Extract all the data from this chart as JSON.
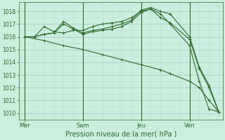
{
  "background_color": "#cceedd",
  "grid_color_major": "#aacccc",
  "grid_color_minor": "#bbdddd",
  "line_color": "#2d6a2d",
  "xlabel": "Pression niveau de la mer( hPa )",
  "ylim": [
    1009.5,
    1018.7
  ],
  "yticks": [
    1010,
    1011,
    1012,
    1013,
    1014,
    1015,
    1016,
    1017,
    1018
  ],
  "xtick_labels": [
    "Mer",
    "Sam",
    "Jeu",
    "Ven"
  ],
  "xtick_positions": [
    0,
    3,
    6,
    8.5
  ],
  "vline_positions": [
    0,
    3,
    6,
    8.5
  ],
  "xlim": [
    -0.3,
    10.2
  ],
  "series": [
    {
      "x": [
        0,
        0.5,
        1.0,
        1.5,
        2.0,
        2.5,
        3.0,
        3.5,
        4.0,
        4.5,
        5.0,
        5.5,
        6.0,
        6.5,
        7.0,
        7.5,
        8.5,
        9.0,
        9.5,
        10.0
      ],
      "y": [
        1016.0,
        1016.0,
        1016.8,
        1016.4,
        1016.3,
        1016.5,
        1016.5,
        1016.8,
        1017.0,
        1017.1,
        1017.2,
        1017.5,
        1018.0,
        1018.2,
        1017.8,
        1017.0,
        1015.3,
        1012.5,
        1010.3,
        1010.1
      ]
    },
    {
      "x": [
        0,
        0.5,
        1.0,
        1.5,
        2.0,
        2.5,
        3.0,
        3.5,
        4.0,
        4.5,
        5.0,
        5.5,
        6.0,
        6.5,
        7.0,
        7.5,
        8.5,
        9.0,
        9.5,
        10.0
      ],
      "y": [
        1016.0,
        1016.0,
        1016.2,
        1016.3,
        1017.2,
        1016.7,
        1016.3,
        1016.5,
        1016.6,
        1016.8,
        1017.0,
        1017.3,
        1018.1,
        1018.3,
        1018.0,
        1017.8,
        1016.0,
        1013.6,
        1012.2,
        1010.1
      ]
    },
    {
      "x": [
        0,
        0.5,
        1.0,
        1.5,
        2.0,
        2.5,
        3.0,
        3.5,
        4.0,
        4.5,
        5.0,
        5.5,
        6.0,
        6.5,
        7.0,
        7.5,
        8.5,
        9.0,
        9.5,
        10.0
      ],
      "y": [
        1016.0,
        1016.0,
        1016.2,
        1016.3,
        1017.0,
        1016.6,
        1016.2,
        1016.4,
        1016.5,
        1016.6,
        1016.8,
        1017.2,
        1017.9,
        1018.2,
        1017.5,
        1017.1,
        1015.8,
        1013.5,
        1012.0,
        1010.1
      ]
    },
    {
      "x": [
        0,
        1.0,
        2.0,
        3.0,
        4.0,
        5.0,
        6.0,
        7.0,
        7.5,
        8.5,
        9.0,
        9.5,
        10.0
      ],
      "y": [
        1016.0,
        1015.7,
        1015.3,
        1015.0,
        1014.6,
        1014.2,
        1013.8,
        1013.4,
        1013.1,
        1012.5,
        1012.0,
        1011.0,
        1010.1
      ]
    }
  ]
}
